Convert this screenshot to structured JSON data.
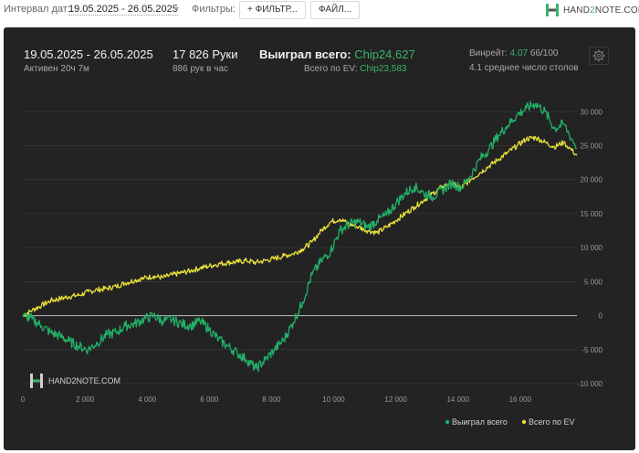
{
  "toolbar": {
    "interval_label": "Интервал дат:",
    "interval_value": "19.05.2025 - 26.05.2025",
    "filters_label": "Фильтры:",
    "filter_button": "+ ФИЛЬТР...",
    "file_button": "ФАЙЛ..."
  },
  "logo": {
    "part1": "HAND",
    "part2": "2",
    "part3": "NOTE.COM"
  },
  "summary": {
    "date_range": "19.05.2025 - 26.05.2025",
    "active_time": "Активен 20ч 7м",
    "hands": "17 826 Руки",
    "hands_per_hour": "886 рук в час",
    "won_label": "Выиграл всего:",
    "won_value": "Chip24,627",
    "ev_label": "Всего по EV:",
    "ev_value": "Chip23,583",
    "winrate_label": "Винрейт:",
    "winrate_value": "4.07",
    "winrate_unit": "66/100",
    "avg_tables": "4.1 среднее число столов"
  },
  "watermark": "HAND2NOTE.COM",
  "colors": {
    "won": "#21b067",
    "ev": "#e8e03a",
    "panel": "#232323",
    "grid": "#3a3a3a",
    "zero_line": "#bdbdbd"
  },
  "chart_data": {
    "type": "line",
    "x_ticks": [
      "0",
      "2 000",
      "4 000",
      "6 000",
      "8 000",
      "10 000",
      "12 000",
      "14 000",
      "16 000"
    ],
    "y_ticks": [
      "30 000",
      "25 000",
      "20 000",
      "15 000",
      "10 000",
      "5 000",
      "0",
      "-5 000",
      "-10 000"
    ],
    "xlim": [
      0,
      17826
    ],
    "ylim": [
      -10000,
      33000
    ],
    "grid": true,
    "legend_position": "bottom-right",
    "series": [
      {
        "name": "Выиграл всего",
        "color": "#21b067",
        "x": [
          0,
          300,
          600,
          900,
          1200,
          1500,
          1800,
          2100,
          2400,
          2700,
          3000,
          3300,
          3600,
          3900,
          4200,
          4500,
          4800,
          5100,
          5400,
          5700,
          6000,
          6300,
          6600,
          6900,
          7200,
          7500,
          7800,
          8100,
          8400,
          8700,
          9000,
          9300,
          9600,
          9900,
          10200,
          10500,
          10800,
          11100,
          11400,
          11700,
          12000,
          12300,
          12600,
          12900,
          13200,
          13500,
          13800,
          14100,
          14400,
          14700,
          15000,
          15300,
          15600,
          15900,
          16200,
          16500,
          16800,
          17100,
          17400,
          17826
        ],
        "y": [
          0,
          -500,
          -1500,
          -2500,
          -3000,
          -3800,
          -4500,
          -5000,
          -4000,
          -2800,
          -2500,
          -1500,
          -1200,
          -500,
          0,
          -800,
          -600,
          -1200,
          -1500,
          -800,
          -2000,
          -3500,
          -4500,
          -5500,
          -6500,
          -7800,
          -6500,
          -5000,
          -3500,
          -1000,
          2000,
          6000,
          8000,
          9500,
          12500,
          13500,
          13800,
          13000,
          14000,
          14800,
          16500,
          18000,
          19000,
          18000,
          17500,
          18500,
          19500,
          18800,
          20500,
          23000,
          24500,
          26500,
          28000,
          29500,
          30500,
          31200,
          30000,
          27500,
          28200,
          24627
        ]
      },
      {
        "name": "Всего по EV",
        "color": "#e8e03a",
        "x": [
          0,
          300,
          600,
          900,
          1200,
          1500,
          1800,
          2100,
          2400,
          2700,
          3000,
          3300,
          3600,
          3900,
          4200,
          4500,
          4800,
          5100,
          5400,
          5700,
          6000,
          6300,
          6600,
          6900,
          7200,
          7500,
          7800,
          8100,
          8400,
          8700,
          9000,
          9300,
          9600,
          9900,
          10200,
          10500,
          10800,
          11100,
          11400,
          11700,
          12000,
          12300,
          12600,
          12900,
          13200,
          13500,
          13800,
          14100,
          14400,
          14700,
          15000,
          15300,
          15600,
          15900,
          16200,
          16500,
          16800,
          17100,
          17400,
          17826
        ],
        "y": [
          0,
          800,
          1500,
          2200,
          2500,
          2800,
          3000,
          3500,
          3800,
          4000,
          4300,
          4800,
          5200,
          5500,
          5800,
          5600,
          6000,
          6300,
          6600,
          7000,
          7300,
          7600,
          7800,
          7900,
          8100,
          7800,
          8100,
          8400,
          8800,
          9100,
          9800,
          10800,
          12500,
          13800,
          14200,
          13500,
          13000,
          12500,
          12200,
          13000,
          14000,
          15000,
          16000,
          17000,
          18000,
          19000,
          19500,
          18800,
          20000,
          21000,
          22000,
          23000,
          24000,
          25000,
          26000,
          26200,
          25500,
          24800,
          25500,
          23583
        ]
      }
    ]
  }
}
